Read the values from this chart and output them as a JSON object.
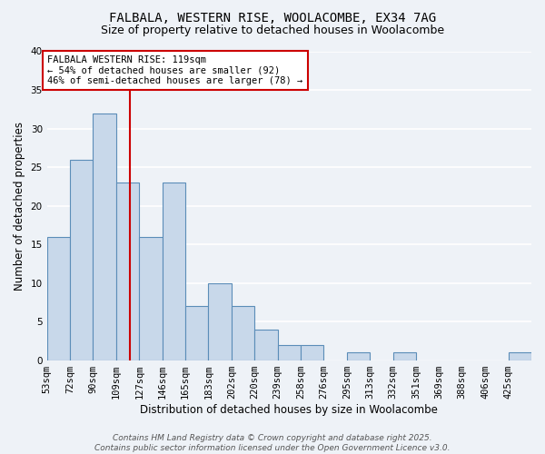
{
  "title_line1": "FALBALA, WESTERN RISE, WOOLACOMBE, EX34 7AG",
  "title_line2": "Size of property relative to detached houses in Woolacombe",
  "xlabel": "Distribution of detached houses by size in Woolacombe",
  "ylabel": "Number of detached properties",
  "bin_labels": [
    "53sqm",
    "72sqm",
    "90sqm",
    "109sqm",
    "127sqm",
    "146sqm",
    "165sqm",
    "183sqm",
    "202sqm",
    "220sqm",
    "239sqm",
    "258sqm",
    "276sqm",
    "295sqm",
    "313sqm",
    "332sqm",
    "351sqm",
    "369sqm",
    "388sqm",
    "406sqm",
    "425sqm"
  ],
  "values": [
    16,
    26,
    32,
    23,
    16,
    23,
    7,
    10,
    7,
    4,
    2,
    2,
    0,
    1,
    0,
    1,
    0,
    0,
    0,
    0,
    1
  ],
  "bar_color": "#c8d8ea",
  "bar_edge_color": "#5b8db8",
  "vline_bin_index": 3.61,
  "vline_color": "#cc0000",
  "annotation_text": "FALBALA WESTERN RISE: 119sqm\n← 54% of detached houses are smaller (92)\n46% of semi-detached houses are larger (78) →",
  "annotation_box_color": "#ffffff",
  "annotation_box_edge": "#cc0000",
  "ylim": [
    0,
    40
  ],
  "yticks": [
    0,
    5,
    10,
    15,
    20,
    25,
    30,
    35,
    40
  ],
  "footer_line1": "Contains HM Land Registry data © Crown copyright and database right 2025.",
  "footer_line2": "Contains public sector information licensed under the Open Government Licence v3.0.",
  "background_color": "#eef2f7",
  "grid_color": "#ffffff",
  "title_fontsize": 10,
  "subtitle_fontsize": 9,
  "axis_label_fontsize": 8.5,
  "tick_fontsize": 7.5,
  "annotation_fontsize": 7.5,
  "footer_fontsize": 6.5
}
